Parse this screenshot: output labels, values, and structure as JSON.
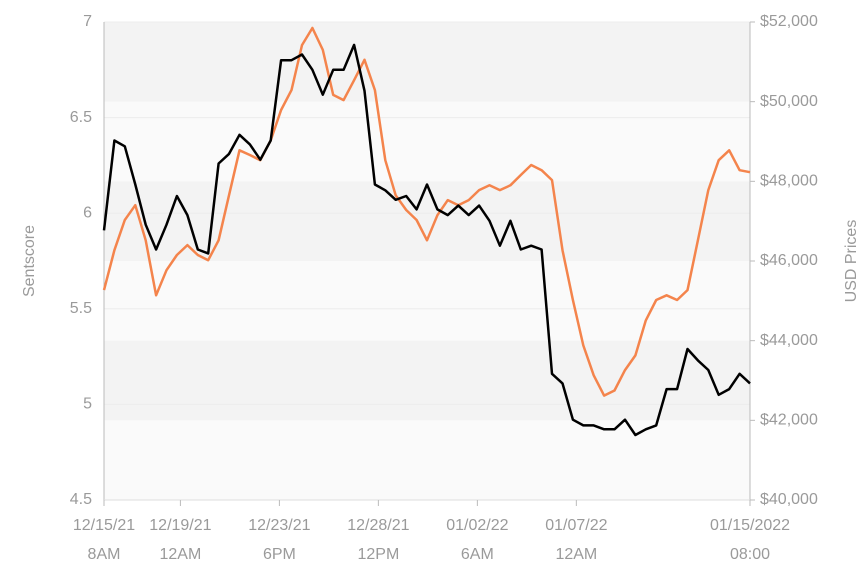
{
  "chart_data": {
    "type": "line",
    "y_label": "Sentscore",
    "y2_label": "USD Prices",
    "x": [
      0,
      12,
      24,
      36,
      48,
      60,
      72,
      84,
      96,
      108,
      120,
      132,
      144,
      156,
      168,
      180,
      192,
      204,
      216,
      228,
      240,
      252,
      264,
      276,
      288,
      300,
      312,
      324,
      336,
      348,
      360,
      372,
      384,
      396,
      408,
      420,
      432,
      444,
      456,
      468,
      480,
      492,
      504,
      516,
      528,
      540,
      552,
      564,
      576,
      588,
      600,
      612,
      624,
      636,
      648,
      660,
      672,
      684,
      696,
      708,
      720,
      732,
      744
    ],
    "xlim": [
      0,
      744
    ],
    "xticks": [
      {
        "value": 0,
        "label": "12/15/21 8AM"
      },
      {
        "value": 88,
        "label": "12/19/21 12AM"
      },
      {
        "value": 202,
        "label": "12/23/21 6PM"
      },
      {
        "value": 316,
        "label": "12/28/21 12PM"
      },
      {
        "value": 430,
        "label": "01/02/22 6AM"
      },
      {
        "value": 544,
        "label": "01/07/22 12AM"
      },
      {
        "value": 744,
        "label": "01/15/2022 08:00"
      }
    ],
    "ylim": [
      4.5,
      7
    ],
    "yticks": [
      4.5,
      5,
      5.5,
      6,
      6.5,
      7
    ],
    "y2lim": [
      40000,
      52000
    ],
    "y2ticks": [
      {
        "value": 40000,
        "label": "$40,000"
      },
      {
        "value": 42000,
        "label": "$42,000"
      },
      {
        "value": 44000,
        "label": "$44,000"
      },
      {
        "value": 46000,
        "label": "$46,000"
      },
      {
        "value": 48000,
        "label": "$48,000"
      },
      {
        "value": 50000,
        "label": "$50,000"
      },
      {
        "value": 52000,
        "label": "$52,000"
      }
    ],
    "series": [
      {
        "color": "#000000",
        "axis": "y",
        "values": [
          5.91,
          6.38,
          6.35,
          6.15,
          5.94,
          5.81,
          5.94,
          6.09,
          5.99,
          5.81,
          5.79,
          6.26,
          6.31,
          6.41,
          6.36,
          6.28,
          6.38,
          6.8,
          6.8,
          6.83,
          6.75,
          6.62,
          6.75,
          6.75,
          6.88,
          6.64,
          6.15,
          6.12,
          6.07,
          6.09,
          6.02,
          6.15,
          6.02,
          5.99,
          6.04,
          5.99,
          6.04,
          5.96,
          5.83,
          5.96,
          5.81,
          5.83,
          5.81,
          5.16,
          5.11,
          4.92,
          4.89,
          4.89,
          4.87,
          4.87,
          4.92,
          4.84,
          4.87,
          4.89,
          5.08,
          5.08,
          5.29,
          5.23,
          5.18,
          5.05,
          5.08,
          5.16,
          5.11
        ]
      },
      {
        "color": "#f4844c",
        "axis": "y2",
        "values": [
          45270,
          46270,
          47030,
          47400,
          46520,
          45140,
          45770,
          46150,
          46400,
          46150,
          46020,
          46520,
          47650,
          48780,
          48660,
          48530,
          49030,
          49790,
          50290,
          51420,
          51850,
          51300,
          50170,
          50040,
          50540,
          51050,
          50290,
          48530,
          47650,
          47280,
          47030,
          46520,
          47150,
          47530,
          47400,
          47530,
          47780,
          47900,
          47780,
          47900,
          48160,
          48410,
          48280,
          48030,
          46270,
          45020,
          43880,
          43130,
          42620,
          42750,
          43260,
          43630,
          44510,
          45020,
          45140,
          45020,
          45270,
          46520,
          47780,
          48530,
          48780,
          48280,
          48230
        ]
      }
    ]
  }
}
